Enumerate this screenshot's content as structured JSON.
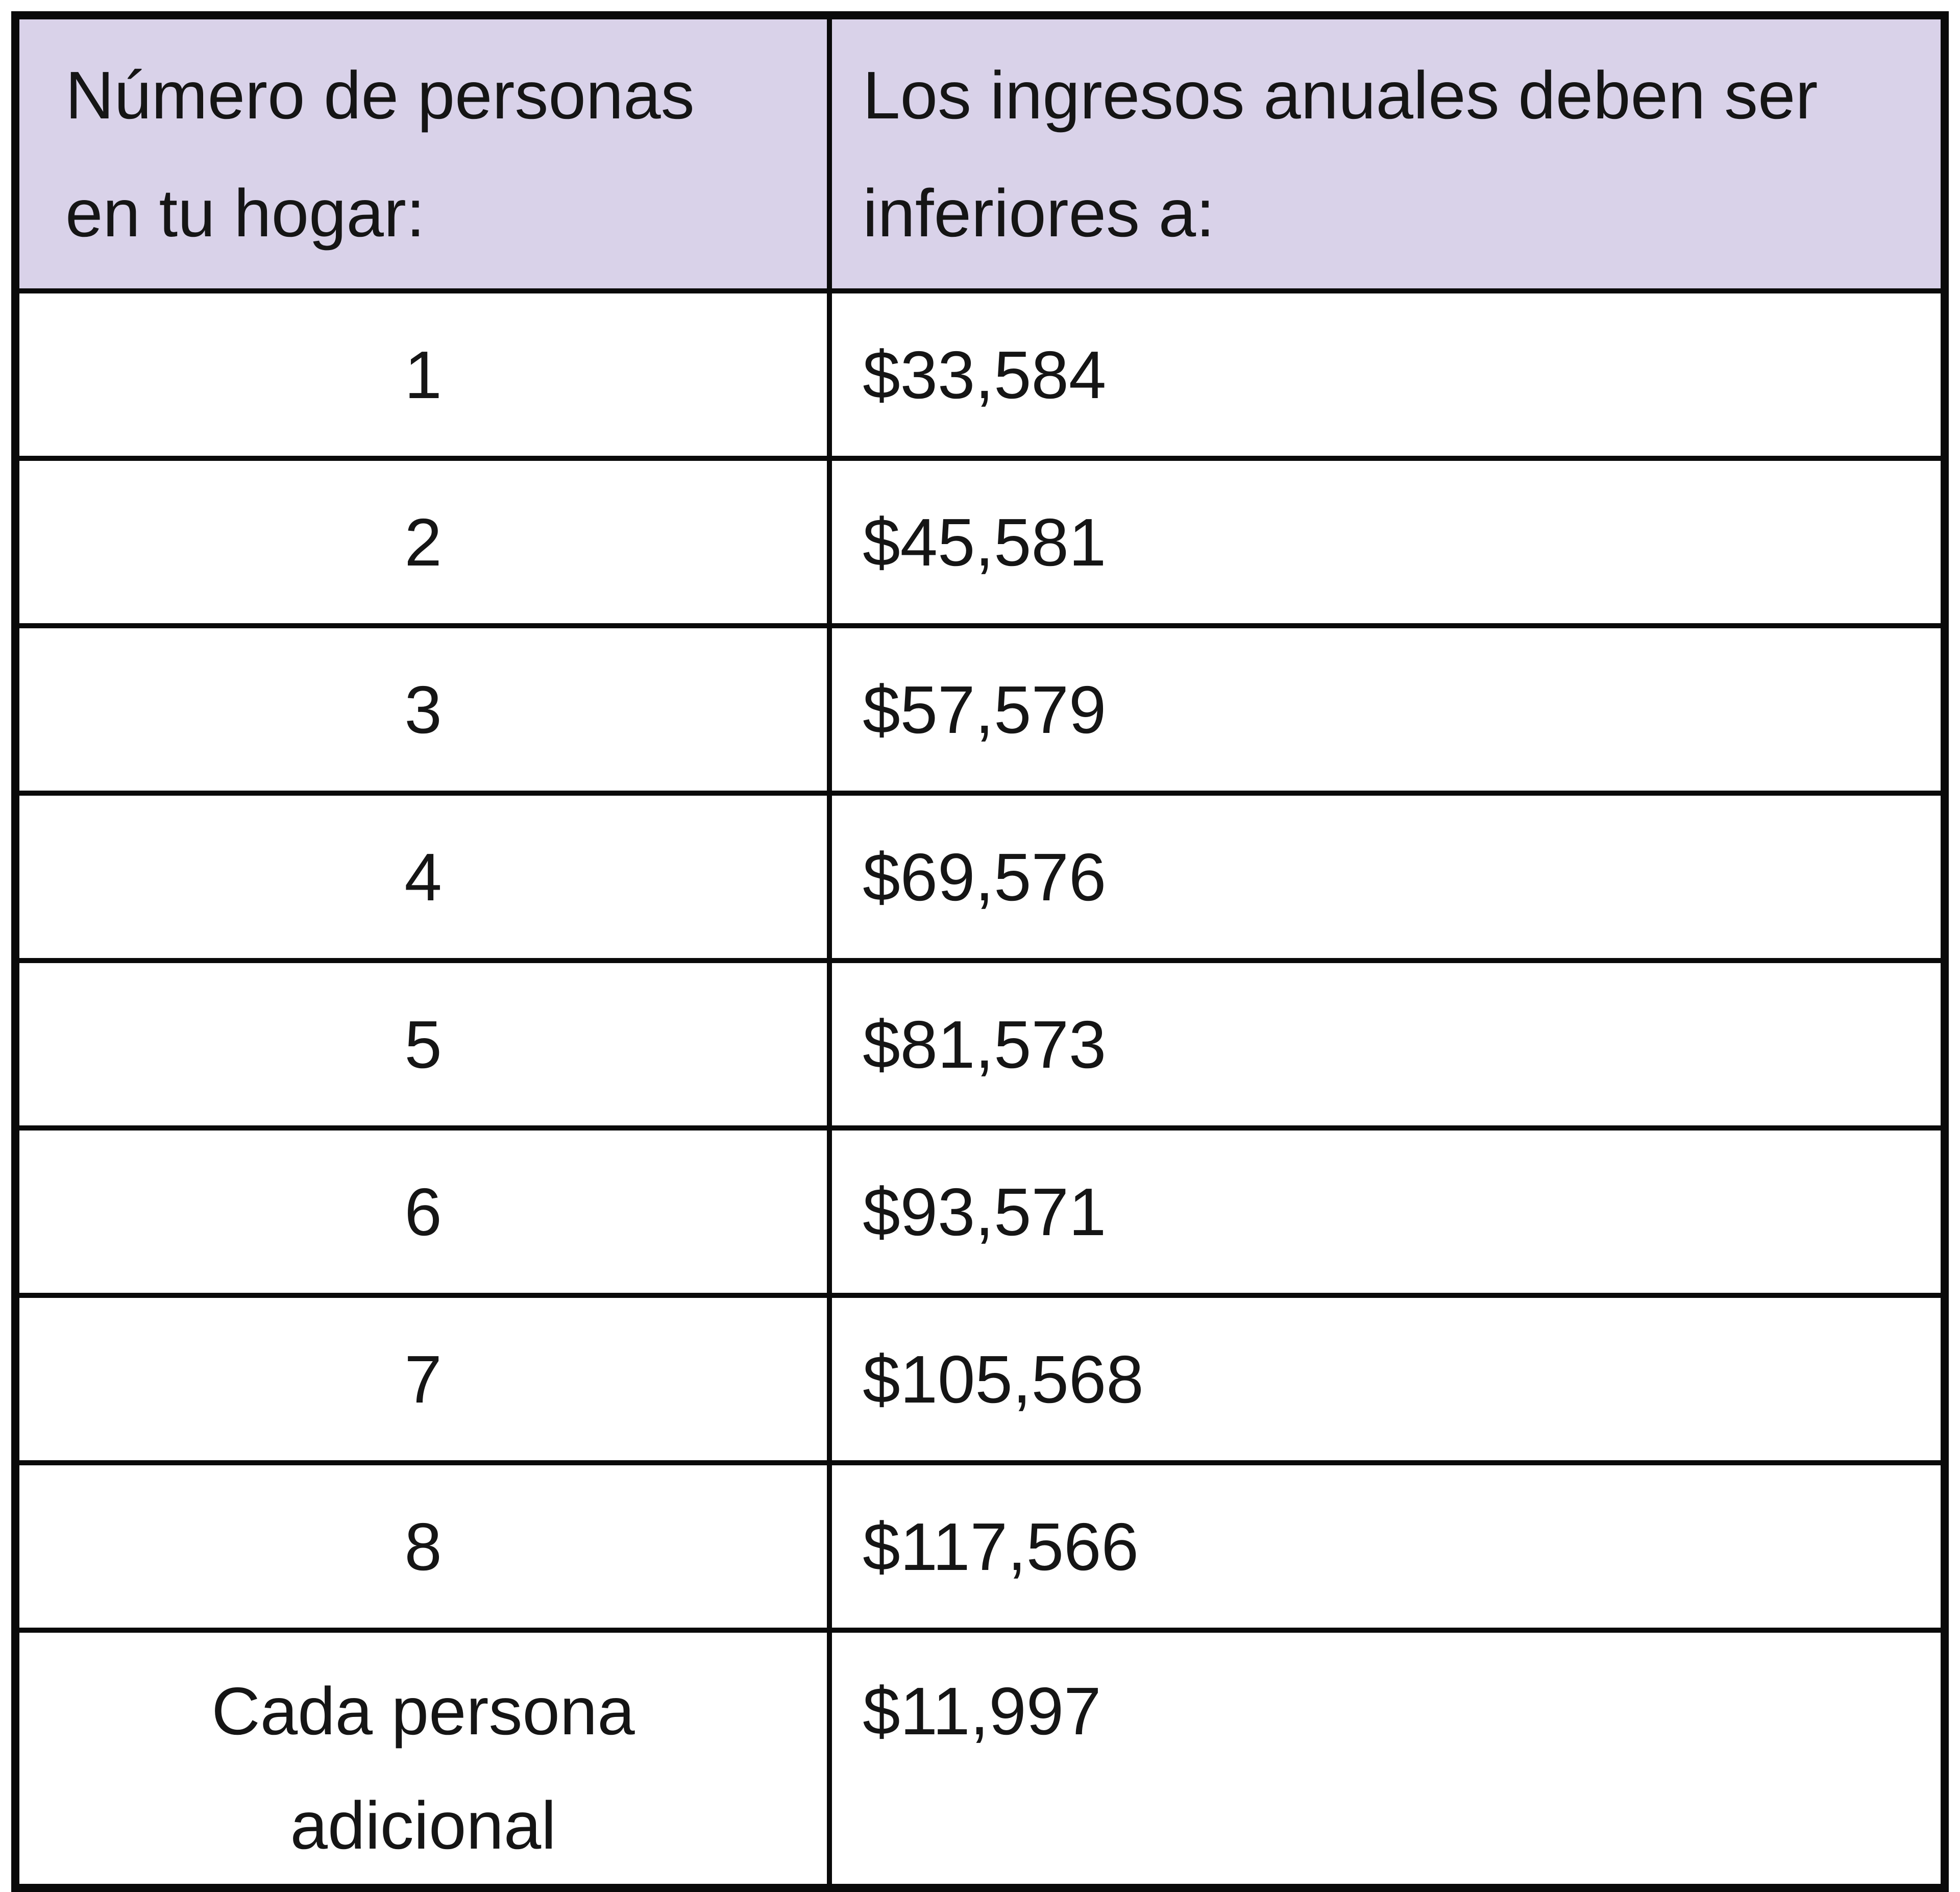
{
  "table": {
    "headers": [
      {
        "label": "Número de personas en tu hogar:"
      },
      {
        "label": "Los ingresos anuales deben ser inferiores a:"
      }
    ],
    "rows": [
      {
        "household_size": "1",
        "income_limit": "$33,584"
      },
      {
        "household_size": "2",
        "income_limit": "$45,581"
      },
      {
        "household_size": "3",
        "income_limit": "$57,579"
      },
      {
        "household_size": "4",
        "income_limit": "$69,576"
      },
      {
        "household_size": "5",
        "income_limit": "$81,573"
      },
      {
        "household_size": "6",
        "income_limit": "$93,571"
      },
      {
        "household_size": "7",
        "income_limit": "$105,568"
      },
      {
        "household_size": "8",
        "income_limit": "$117,566"
      },
      {
        "household_size": "Cada persona adicional",
        "income_limit": "$11,997"
      }
    ],
    "colors": {
      "header_bg": "#d9d2e9",
      "border": "#0a0a0a",
      "text": "#151515"
    }
  }
}
